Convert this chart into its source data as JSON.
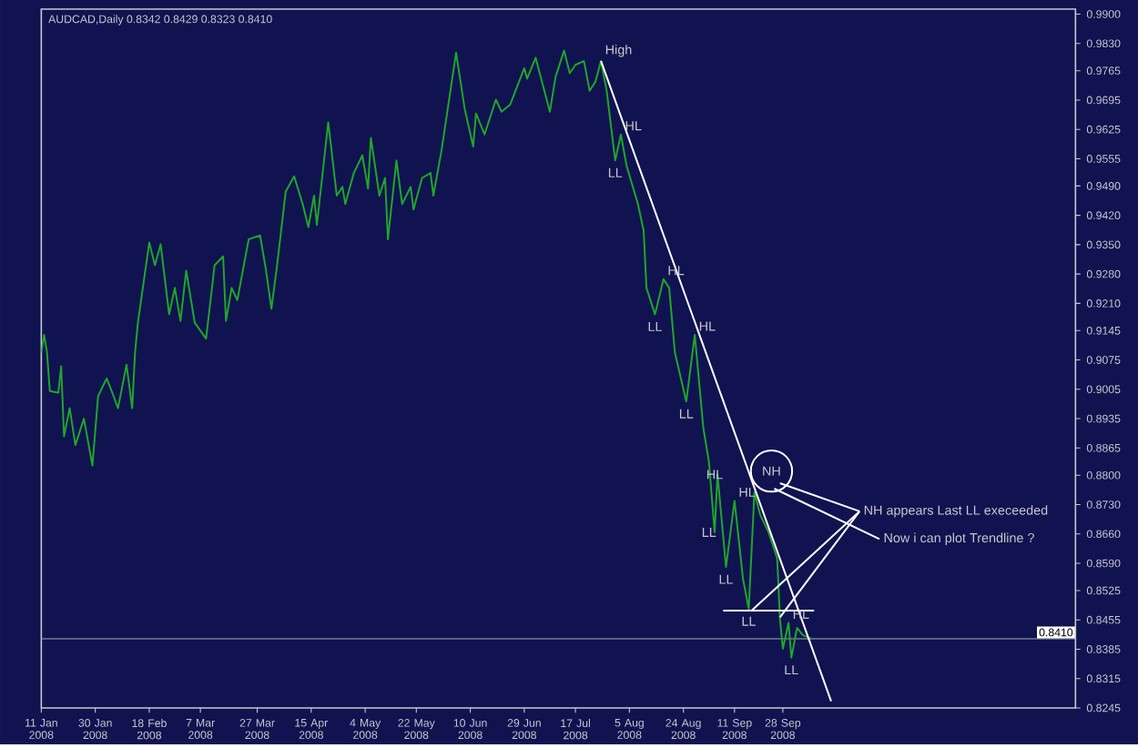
{
  "chart_data": {
    "type": "line",
    "title": "AUDCAD,Daily 0.8342 0.8429 0.8323 0.8410",
    "xlim": [
      "2008-01-11",
      "2009-01-09"
    ],
    "ylim": [
      0.8245,
      0.9912
    ],
    "xticks": [
      {
        "value": "2008-01-11",
        "label": "11 Jan 2008"
      },
      {
        "value": "2008-01-30",
        "label": "30 Jan 2008"
      },
      {
        "value": "2008-02-18",
        "label": "18 Feb 2008"
      },
      {
        "value": "2008-03-07",
        "label": "7 Mar 2008"
      },
      {
        "value": "2008-03-27",
        "label": "27 Mar 2008"
      },
      {
        "value": "2008-04-15",
        "label": "15 Apr 2008"
      },
      {
        "value": "2008-05-04",
        "label": "4 May 2008"
      },
      {
        "value": "2008-05-22",
        "label": "22 May 2008"
      },
      {
        "value": "2008-06-10",
        "label": "10 Jun 2008"
      },
      {
        "value": "2008-06-29",
        "label": "29 Jun 2008"
      },
      {
        "value": "2008-07-17",
        "label": "17 Jul 2008"
      },
      {
        "value": "2008-08-05",
        "label": "5 Aug 2008"
      },
      {
        "value": "2008-08-24",
        "label": "24 Aug 2008"
      },
      {
        "value": "2008-09-11",
        "label": "11 Sep 2008"
      },
      {
        "value": "2008-09-28",
        "label": "28 Sep 2008"
      }
    ],
    "yticks": [
      {
        "value": 0.99,
        "label": "0.9900"
      },
      {
        "value": 0.983,
        "label": "0.9830"
      },
      {
        "value": 0.9765,
        "label": "0.9765"
      },
      {
        "value": 0.9695,
        "label": "0.9695"
      },
      {
        "value": 0.9625,
        "label": "0.9625"
      },
      {
        "value": 0.9555,
        "label": "0.9555"
      },
      {
        "value": 0.949,
        "label": "0.9490"
      },
      {
        "value": 0.942,
        "label": "0.9420"
      },
      {
        "value": 0.935,
        "label": "0.9350"
      },
      {
        "value": 0.928,
        "label": "0.9280"
      },
      {
        "value": 0.921,
        "label": "0.9210"
      },
      {
        "value": 0.9145,
        "label": "0.9145"
      },
      {
        "value": 0.9075,
        "label": "0.9075"
      },
      {
        "value": 0.9005,
        "label": "0.9005"
      },
      {
        "value": 0.8935,
        "label": "0.8935"
      },
      {
        "value": 0.8865,
        "label": "0.8865"
      },
      {
        "value": 0.88,
        "label": "0.8800"
      },
      {
        "value": 0.873,
        "label": "0.8730"
      },
      {
        "value": 0.866,
        "label": "0.8660"
      },
      {
        "value": 0.859,
        "label": "0.8590"
      },
      {
        "value": 0.8525,
        "label": "0.8525"
      },
      {
        "value": 0.8455,
        "label": "0.8455"
      },
      {
        "value": 0.8385,
        "label": "0.8385"
      },
      {
        "value": 0.8315,
        "label": "0.8315"
      },
      {
        "value": 0.8245,
        "label": "0.8245"
      }
    ],
    "series": [
      {
        "color": "#1fa52c",
        "x": [
          "2008-01-11",
          "2008-01-12",
          "2008-01-13",
          "2008-01-14",
          "2008-01-17",
          "2008-01-18",
          "2008-01-19",
          "2008-01-21",
          "2008-01-23",
          "2008-01-26",
          "2008-01-29",
          "2008-01-31",
          "2008-02-03",
          "2008-02-05",
          "2008-02-07",
          "2008-02-10",
          "2008-02-12",
          "2008-02-13",
          "2008-02-14",
          "2008-02-18",
          "2008-02-20",
          "2008-02-22",
          "2008-02-25",
          "2008-02-27",
          "2008-02-29",
          "2008-03-02",
          "2008-03-05",
          "2008-03-09",
          "2008-03-12",
          "2008-03-15",
          "2008-03-16",
          "2008-03-18",
          "2008-03-20",
          "2008-03-24",
          "2008-03-28",
          "2008-03-30",
          "2008-04-01",
          "2008-04-03",
          "2008-04-06",
          "2008-04-09",
          "2008-04-12",
          "2008-04-14",
          "2008-04-16",
          "2008-04-17",
          "2008-04-21",
          "2008-04-24",
          "2008-04-26",
          "2008-04-27",
          "2008-04-30",
          "2008-05-03",
          "2008-05-05",
          "2008-05-06",
          "2008-05-09",
          "2008-05-11",
          "2008-05-12",
          "2008-05-15",
          "2008-05-17",
          "2008-05-20",
          "2008-05-21",
          "2008-05-24",
          "2008-05-27",
          "2008-05-28",
          "2008-05-31",
          "2008-06-05",
          "2008-06-08",
          "2008-06-11",
          "2008-06-12",
          "2008-06-15",
          "2008-06-19",
          "2008-06-21",
          "2008-06-24",
          "2008-06-29",
          "2008-06-30",
          "2008-07-03",
          "2008-07-08",
          "2008-07-10",
          "2008-07-13",
          "2008-07-15",
          "2008-07-17",
          "2008-07-20",
          "2008-07-22",
          "2008-07-24",
          "2008-07-26",
          "2008-07-28",
          "2008-07-31",
          "2008-08-02",
          "2008-08-04",
          "2008-08-08",
          "2008-08-10",
          "2008-08-11",
          "2008-08-14",
          "2008-08-17",
          "2008-08-19",
          "2008-08-21",
          "2008-08-25",
          "2008-08-28",
          "2008-08-31",
          "2008-09-02",
          "2008-09-04",
          "2008-09-05",
          "2008-09-08",
          "2008-09-11",
          "2008-09-14",
          "2008-09-16",
          "2008-09-18",
          "2008-09-20",
          "2008-09-23",
          "2008-09-26",
          "2008-09-27",
          "2008-09-28",
          "2008-09-30",
          "2008-10-01",
          "2008-10-03",
          "2008-10-05",
          "2008-10-08"
        ],
        "values": [
          0.9093,
          0.9135,
          0.9093,
          0.9001,
          0.8997,
          0.906,
          0.8893,
          0.896,
          0.8872,
          0.8935,
          0.8823,
          0.8989,
          0.9031,
          0.8997,
          0.896,
          0.9064,
          0.896,
          0.9093,
          0.9164,
          0.9355,
          0.9301,
          0.9351,
          0.9184,
          0.9247,
          0.9168,
          0.9288,
          0.9164,
          0.9126,
          0.9301,
          0.9322,
          0.9168,
          0.9247,
          0.9218,
          0.9363,
          0.9372,
          0.9293,
          0.9197,
          0.9301,
          0.9476,
          0.9513,
          0.9447,
          0.9392,
          0.9467,
          0.9397,
          0.9642,
          0.9467,
          0.9488,
          0.9447,
          0.9521,
          0.9563,
          0.9484,
          0.9605,
          0.9467,
          0.9509,
          0.9363,
          0.9551,
          0.9447,
          0.9488,
          0.9434,
          0.9509,
          0.9521,
          0.9467,
          0.958,
          0.9808,
          0.9675,
          0.9584,
          0.9663,
          0.9613,
          0.9696,
          0.9667,
          0.9684,
          0.9771,
          0.9746,
          0.9796,
          0.9667,
          0.975,
          0.9813,
          0.9759,
          0.9779,
          0.9788,
          0.9717,
          0.9738,
          0.9788,
          0.9717,
          0.9551,
          0.9613,
          0.9538,
          0.9447,
          0.9384,
          0.9247,
          0.9184,
          0.9268,
          0.9247,
          0.9093,
          0.8976,
          0.9135,
          0.8914,
          0.8831,
          0.8664,
          0.8802,
          0.8581,
          0.8739,
          0.8552,
          0.8481,
          0.876,
          0.8706,
          0.8664,
          0.8602,
          0.8456,
          0.8386,
          0.8448,
          0.8365,
          0.8436,
          0.8419,
          0.841
        ]
      },
      {
        "color": "#ffffff",
        "x": [
          "2008-07-26",
          "2008-10-15"
        ],
        "values": [
          0.9788,
          0.8261
        ]
      },
      {
        "color": "#ffffff",
        "x": [
          "2008-09-07",
          "2008-10-09"
        ],
        "values": [
          0.8477,
          0.8477
        ]
      },
      {
        "color": "#ffffff",
        "x": [
          "2008-09-27",
          "2008-10-25"
        ],
        "values": [
          0.8781,
          0.8714
        ]
      },
      {
        "color": "#ffffff",
        "x": [
          "2008-09-25",
          "2008-11-01"
        ],
        "values": [
          0.8768,
          0.8648
        ]
      },
      {
        "color": "#ffffff",
        "x": [
          "2008-09-17",
          "2008-10-25"
        ],
        "values": [
          0.8477,
          0.8714
        ]
      },
      {
        "color": "#ffffff",
        "x": [
          "2008-09-27",
          "2008-10-25"
        ],
        "values": [
          0.8461,
          0.8714
        ]
      },
      {
        "type": "scatter",
        "marker": "circle",
        "color": "#ffffff",
        "x": [
          "2008-09-24"
        ],
        "values": [
          0.881
        ]
      }
    ],
    "ref_lines": [
      {
        "axis": "y",
        "value": 0.841,
        "label": "0.8410",
        "color": "#a0a0b0"
      }
    ],
    "annotations": [
      {
        "text": "High",
        "x": "2008-07-26",
        "y": 0.9788
      },
      {
        "text": "HL",
        "x": "2008-08-02",
        "y": 0.9613
      },
      {
        "text": "LL",
        "x": "2008-07-31",
        "y": 0.9551
      },
      {
        "text": "HL",
        "x": "2008-08-17",
        "y": 0.9268
      },
      {
        "text": "LL",
        "x": "2008-08-14",
        "y": 0.9184
      },
      {
        "text": "HL",
        "x": "2008-08-28",
        "y": 0.9135
      },
      {
        "text": "LL",
        "x": "2008-08-25",
        "y": 0.8976
      },
      {
        "text": "HL",
        "x": "2008-09-04",
        "y": 0.8802
      },
      {
        "text": "HL",
        "x": "2008-09-11",
        "y": 0.8739
      },
      {
        "text": "LL",
        "x": "2008-09-02",
        "y": 0.8664
      },
      {
        "text": "LL",
        "x": "2008-09-08",
        "y": 0.8581
      },
      {
        "text": "LL",
        "x": "2008-09-16",
        "y": 0.8481
      },
      {
        "text": "HL",
        "x": "2008-09-30",
        "y": 0.8448
      },
      {
        "text": "LL",
        "x": "2008-10-01",
        "y": 0.8365
      },
      {
        "text": "NH",
        "x": "2008-09-24",
        "y": 0.881
      },
      {
        "text": "NH appears Last LL execeeded",
        "x": "2008-10-25",
        "y": 0.8714
      },
      {
        "text": "Now i can plot Trendline ?",
        "x": "2008-11-01",
        "y": 0.8648
      }
    ]
  }
}
